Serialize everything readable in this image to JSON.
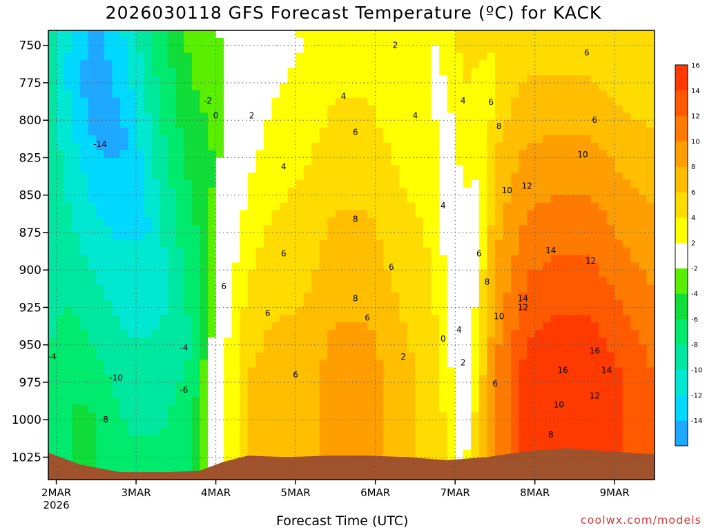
{
  "chart_data": {
    "type": "heatmap",
    "title": "2026030118 GFS Forecast Temperature (ºC) for KACK",
    "xlabel": "Forecast Time (UTC)",
    "ylabel": "",
    "x_ticks": [
      {
        "label": "2MAR",
        "sub": "2026",
        "t": 0.1
      },
      {
        "label": "3MAR",
        "sub": "",
        "t": 1.1
      },
      {
        "label": "4MAR",
        "sub": "",
        "t": 2.1
      },
      {
        "label": "5MAR",
        "sub": "",
        "t": 3.1
      },
      {
        "label": "6MAR",
        "sub": "",
        "t": 4.1
      },
      {
        "label": "7MAR",
        "sub": "",
        "t": 5.1
      },
      {
        "label": "8MAR",
        "sub": "",
        "t": 6.1
      },
      {
        "label": "9MAR",
        "sub": "",
        "t": 7.1
      }
    ],
    "xlim": [
      0,
      7.6
    ],
    "y_ticks": [
      750,
      775,
      800,
      825,
      850,
      875,
      900,
      925,
      950,
      975,
      1000,
      1025
    ],
    "ylim": [
      740,
      1040
    ],
    "y_scale": "linear-inverted",
    "colorbar": {
      "levels": [
        -16,
        -14,
        -12,
        -10,
        -8,
        -6,
        -4,
        -2,
        2,
        4,
        6,
        8,
        10,
        12,
        14,
        16,
        18
      ],
      "labels": [
        "-14",
        "-12",
        "-10",
        "-8",
        "-6",
        "-4",
        "-2",
        "2",
        "4",
        "6",
        "8",
        "10",
        "12",
        "14",
        "16"
      ],
      "colors": [
        "#1fa8ff",
        "#00d8ff",
        "#00e8d2",
        "#00e8a0",
        "#00ea6e",
        "#10dc3a",
        "#5aee00",
        "#ffffff",
        "#ffff00",
        "#ffdc00",
        "#ffbf00",
        "#ff9e00",
        "#ff7a00",
        "#ff5a00",
        "#ff3a00"
      ]
    },
    "grid": true,
    "samples": [
      {
        "t": 0.0,
        "min": -9,
        "max": -8,
        "min_p": 760
      },
      {
        "t": 0.3,
        "min": -13,
        "max": -6,
        "min_p": 770
      },
      {
        "t": 0.6,
        "min": -16,
        "max": -6,
        "min_p": 775
      },
      {
        "t": 1.0,
        "min": -14,
        "max": -7,
        "min_p": 820
      },
      {
        "t": 1.4,
        "min": -11,
        "max": -5,
        "min_p": 900
      },
      {
        "t": 1.8,
        "min": -8,
        "max": -3,
        "min_p": 950
      },
      {
        "t": 2.2,
        "min": -2,
        "max": 2,
        "min_p": 760
      },
      {
        "t": 2.5,
        "min": -1,
        "max": 6,
        "min_p": 750
      },
      {
        "t": 2.8,
        "min": 1,
        "max": 7,
        "min_p": 750
      },
      {
        "t": 3.2,
        "min": 2,
        "max": 7,
        "min_p": 750
      },
      {
        "t": 3.6,
        "min": 3,
        "max": 9,
        "min_p": 750
      },
      {
        "t": 4.0,
        "min": 3,
        "max": 9,
        "min_p": 750
      },
      {
        "t": 4.4,
        "min": 2,
        "max": 7,
        "min_p": 750
      },
      {
        "t": 4.8,
        "min": 2,
        "max": 5,
        "min_p": 750
      },
      {
        "t": 5.2,
        "min": -1,
        "max": 5,
        "min_p": 960
      },
      {
        "t": 5.6,
        "min": 4,
        "max": 10,
        "min_p": 750
      },
      {
        "t": 6.0,
        "min": 5,
        "max": 15,
        "min_p": 750
      },
      {
        "t": 6.4,
        "min": 5,
        "max": 16,
        "min_p": 750
      },
      {
        "t": 6.8,
        "min": 5,
        "max": 16,
        "min_p": 750
      },
      {
        "t": 7.2,
        "min": 4,
        "max": 14,
        "min_p": 750
      },
      {
        "t": 7.6,
        "min": 4,
        "max": 12,
        "min_p": 750
      }
    ],
    "ground_surface": [
      {
        "t": 0.0,
        "p": 1022
      },
      {
        "t": 0.4,
        "p": 1030
      },
      {
        "t": 0.9,
        "p": 1035
      },
      {
        "t": 1.5,
        "p": 1035
      },
      {
        "t": 1.9,
        "p": 1034
      },
      {
        "t": 2.2,
        "p": 1028
      },
      {
        "t": 2.5,
        "p": 1024
      },
      {
        "t": 3.0,
        "p": 1025
      },
      {
        "t": 3.5,
        "p": 1024
      },
      {
        "t": 4.0,
        "p": 1024
      },
      {
        "t": 4.5,
        "p": 1025
      },
      {
        "t": 5.0,
        "p": 1027
      },
      {
        "t": 5.5,
        "p": 1025
      },
      {
        "t": 6.0,
        "p": 1021
      },
      {
        "t": 6.5,
        "p": 1019
      },
      {
        "t": 7.0,
        "p": 1021
      },
      {
        "t": 7.6,
        "p": 1023
      }
    ],
    "contour_labels": [
      {
        "text": "2",
        "t": 4.35,
        "p": 750
      },
      {
        "text": "6",
        "t": 6.75,
        "p": 755
      },
      {
        "text": "4",
        "t": 3.7,
        "p": 784
      },
      {
        "text": "-2",
        "t": 2.0,
        "p": 787
      },
      {
        "text": "4",
        "t": 5.2,
        "p": 787
      },
      {
        "text": "6",
        "t": 5.55,
        "p": 788
      },
      {
        "text": "4",
        "t": 4.6,
        "p": 797
      },
      {
        "text": "0",
        "t": 2.1,
        "p": 797
      },
      {
        "text": "2",
        "t": 2.55,
        "p": 797
      },
      {
        "text": "6",
        "t": 6.85,
        "p": 800
      },
      {
        "text": "8",
        "t": 5.65,
        "p": 804
      },
      {
        "text": "6",
        "t": 3.85,
        "p": 808
      },
      {
        "text": "-14",
        "t": 0.65,
        "p": 816
      },
      {
        "text": "10",
        "t": 6.7,
        "p": 823
      },
      {
        "text": "4",
        "t": 2.95,
        "p": 831
      },
      {
        "text": "12",
        "t": 6.0,
        "p": 844
      },
      {
        "text": "10",
        "t": 5.75,
        "p": 847
      },
      {
        "text": "4",
        "t": 4.95,
        "p": 857
      },
      {
        "text": "8",
        "t": 3.85,
        "p": 866
      },
      {
        "text": "14",
        "t": 6.3,
        "p": 887
      },
      {
        "text": "6",
        "t": 5.4,
        "p": 889
      },
      {
        "text": "6",
        "t": 2.95,
        "p": 889
      },
      {
        "text": "12",
        "t": 6.8,
        "p": 894
      },
      {
        "text": "6",
        "t": 4.3,
        "p": 898
      },
      {
        "text": "8",
        "t": 5.5,
        "p": 908
      },
      {
        "text": "6",
        "t": 2.2,
        "p": 911
      },
      {
        "text": "8",
        "t": 3.85,
        "p": 919
      },
      {
        "text": "14",
        "t": 5.95,
        "p": 919
      },
      {
        "text": "12",
        "t": 5.95,
        "p": 925
      },
      {
        "text": "6",
        "t": 2.75,
        "p": 929
      },
      {
        "text": "10",
        "t": 5.65,
        "p": 931
      },
      {
        "text": "6",
        "t": 4.0,
        "p": 932
      },
      {
        "text": "4",
        "t": 5.15,
        "p": 940
      },
      {
        "text": "0",
        "t": 4.95,
        "p": 946
      },
      {
        "text": "-4",
        "t": 1.7,
        "p": 952
      },
      {
        "text": "16",
        "t": 6.85,
        "p": 954
      },
      {
        "text": "-4",
        "t": 0.05,
        "p": 958
      },
      {
        "text": "2",
        "t": 4.45,
        "p": 958
      },
      {
        "text": "2",
        "t": 5.2,
        "p": 962
      },
      {
        "text": "16",
        "t": 6.45,
        "p": 967
      },
      {
        "text": "14",
        "t": 7.0,
        "p": 967
      },
      {
        "text": "6",
        "t": 3.1,
        "p": 970
      },
      {
        "text": "-10",
        "t": 0.85,
        "p": 972
      },
      {
        "text": "6",
        "t": 5.6,
        "p": 976
      },
      {
        "text": "-6",
        "t": 1.7,
        "p": 980
      },
      {
        "text": "12",
        "t": 6.85,
        "p": 984
      },
      {
        "text": "10",
        "t": 6.4,
        "p": 990
      },
      {
        "text": "-8",
        "t": 0.7,
        "p": 1000
      },
      {
        "text": "8",
        "t": 6.3,
        "p": 1010
      }
    ]
  },
  "footer": {
    "credit": "coolwx.com/models"
  }
}
